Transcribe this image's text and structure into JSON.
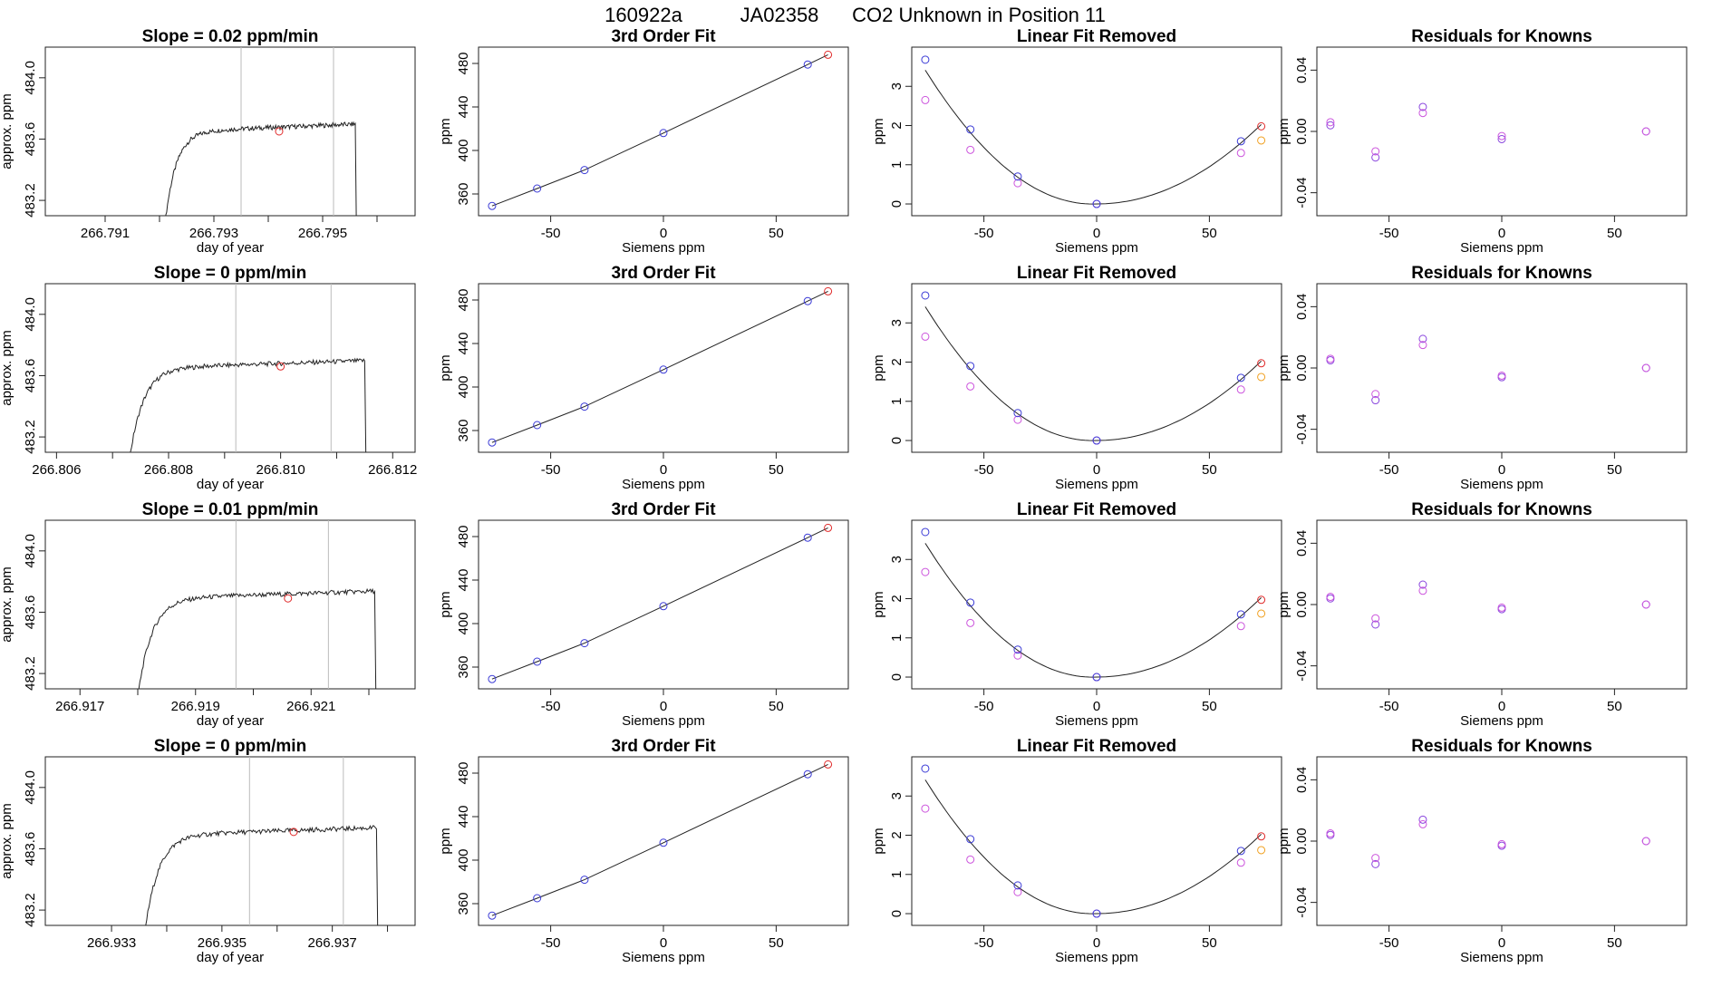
{
  "header": {
    "title_parts": [
      "160922a",
      "JA02358",
      "CO2 Unknown in Position  11"
    ]
  },
  "colors": {
    "known": "#3b3bd6",
    "unknown": "#e02a2a",
    "raw": "#cc55dd",
    "alt": "#f0a020",
    "residual": "#8844dd",
    "line": "#222222",
    "marker": "#bbbbbb"
  },
  "chart_data": [
    {
      "type": "line",
      "title": "Slope =  0.02  ppm/min",
      "xlabel": "day of year",
      "ylabel": "approx. ppm",
      "xlim": [
        266.7899,
        266.7967
      ],
      "ylim": [
        483.1,
        484.2
      ],
      "xticks": [
        266.791,
        266.793,
        266.795
      ],
      "xminor": [
        266.792,
        266.794,
        266.796
      ],
      "yticks": [
        483.2,
        483.6,
        484.0
      ],
      "start": 266.7921,
      "end": 266.7956,
      "plateau": 483.66,
      "markers": [
        266.7935,
        266.7952
      ],
      "point": {
        "x": 266.7942,
        "y": 483.65
      }
    },
    {
      "type": "line",
      "title": "3rd Order Fit",
      "xlabel": "Siemens ppm",
      "ylabel": "ppm",
      "xlim": [
        -82,
        82
      ],
      "ylim": [
        340,
        495
      ],
      "xticks": [
        -50,
        0,
        50
      ],
      "yticks": [
        360,
        400,
        440,
        480
      ],
      "points": [
        [
          -76,
          349
        ],
        [
          -56,
          365
        ],
        [
          -35,
          382
        ],
        [
          0,
          416
        ],
        [
          64,
          479
        ],
        [
          73,
          488
        ]
      ]
    },
    {
      "type": "scatter",
      "title": "Linear Fit Removed",
      "xlabel": "Siemens ppm",
      "ylabel": "ppm",
      "xlim": [
        -82,
        82
      ],
      "ylim": [
        -0.3,
        4.0
      ],
      "xticks": [
        -50,
        0,
        50
      ],
      "yticks": [
        0,
        1,
        2,
        3
      ],
      "fit": [
        [
          -76,
          3.68
        ],
        [
          -56,
          1.9
        ],
        [
          -35,
          0.7
        ],
        [
          0,
          0.0
        ],
        [
          64,
          1.6
        ],
        [
          73,
          1.98
        ]
      ],
      "raw": [
        [
          -76,
          2.65
        ],
        [
          -56,
          1.38
        ],
        [
          -35,
          0.53
        ],
        [
          0,
          0.0
        ],
        [
          64,
          1.3
        ]
      ],
      "alt": [
        [
          73,
          1.62
        ]
      ]
    },
    {
      "type": "scatter",
      "title": "Residuals for Knowns",
      "xlabel": "Siemens ppm",
      "ylabel": "ppm",
      "xlim": [
        -82,
        82
      ],
      "ylim": [
        -0.055,
        0.055
      ],
      "xticks": [
        -50,
        0,
        50
      ],
      "yticks": [
        -0.04,
        0.0,
        0.04
      ],
      "a": [
        [
          -76,
          0.004
        ],
        [
          -56,
          -0.017
        ],
        [
          -35,
          0.016
        ],
        [
          0,
          -0.005
        ],
        [
          64,
          0.0
        ]
      ],
      "b": [
        [
          -76,
          0.006
        ],
        [
          -56,
          -0.013
        ],
        [
          -35,
          0.012
        ],
        [
          0,
          -0.003
        ],
        [
          64,
          0.0
        ]
      ]
    },
    {
      "type": "line",
      "title": "Slope =  0  ppm/min",
      "xlabel": "day of year",
      "ylabel": "approx. ppm",
      "xlim": [
        266.8058,
        266.8124
      ],
      "ylim": [
        483.1,
        484.2
      ],
      "xticks": [
        266.806,
        266.808,
        266.81,
        266.812
      ],
      "xminor": [
        266.807,
        266.809,
        266.811
      ],
      "yticks": [
        483.2,
        483.6,
        484.0
      ],
      "start": 266.8073,
      "end": 266.8115,
      "plateau": 483.66,
      "markers": [
        266.8092,
        266.8109
      ],
      "point": {
        "x": 266.81,
        "y": 483.66
      }
    },
    {
      "type": "line",
      "title": "3rd Order Fit",
      "xlabel": "Siemens ppm",
      "ylabel": "ppm",
      "xlim": [
        -82,
        82
      ],
      "ylim": [
        340,
        495
      ],
      "xticks": [
        -50,
        0,
        50
      ],
      "yticks": [
        360,
        400,
        440,
        480
      ],
      "points": [
        [
          -76,
          349
        ],
        [
          -56,
          365
        ],
        [
          -35,
          382
        ],
        [
          0,
          416
        ],
        [
          64,
          479
        ],
        [
          73,
          488
        ]
      ]
    },
    {
      "type": "scatter",
      "title": "Linear Fit Removed",
      "xlabel": "Siemens ppm",
      "ylabel": "ppm",
      "xlim": [
        -82,
        82
      ],
      "ylim": [
        -0.3,
        4.0
      ],
      "xticks": [
        -50,
        0,
        50
      ],
      "yticks": [
        0,
        1,
        2,
        3
      ],
      "fit": [
        [
          -76,
          3.7
        ],
        [
          -56,
          1.9
        ],
        [
          -35,
          0.7
        ],
        [
          0,
          0.0
        ],
        [
          64,
          1.6
        ],
        [
          73,
          1.97
        ]
      ],
      "raw": [
        [
          -76,
          2.65
        ],
        [
          -56,
          1.38
        ],
        [
          -35,
          0.53
        ],
        [
          0,
          0.0
        ],
        [
          64,
          1.3
        ]
      ],
      "alt": [
        [
          73,
          1.62
        ]
      ]
    },
    {
      "type": "scatter",
      "title": "Residuals for Knowns",
      "xlabel": "Siemens ppm",
      "ylabel": "ppm",
      "xlim": [
        -82,
        82
      ],
      "ylim": [
        -0.055,
        0.055
      ],
      "xticks": [
        -50,
        0,
        50
      ],
      "yticks": [
        -0.04,
        0.0,
        0.04
      ],
      "a": [
        [
          -76,
          0.005
        ],
        [
          -56,
          -0.021
        ],
        [
          -35,
          0.019
        ],
        [
          0,
          -0.006
        ],
        [
          64,
          0.0
        ]
      ],
      "b": [
        [
          -76,
          0.006
        ],
        [
          -56,
          -0.017
        ],
        [
          -35,
          0.015
        ],
        [
          0,
          -0.005
        ],
        [
          64,
          0.0
        ]
      ]
    },
    {
      "type": "line",
      "title": "Slope =  0.01  ppm/min",
      "xlabel": "day of year",
      "ylabel": "approx. ppm",
      "xlim": [
        266.9164,
        266.9228
      ],
      "ylim": [
        483.1,
        484.2
      ],
      "xticks": [
        266.917,
        266.919,
        266.921
      ],
      "xminor": [
        266.918,
        266.92,
        266.922
      ],
      "yticks": [
        483.2,
        483.6,
        484.0
      ],
      "start": 266.918,
      "end": 266.9221,
      "plateau": 483.7,
      "markers": [
        266.9197,
        266.9213
      ],
      "point": {
        "x": 266.9206,
        "y": 483.69
      }
    },
    {
      "type": "line",
      "title": "3rd Order Fit",
      "xlabel": "Siemens ppm",
      "ylabel": "ppm",
      "xlim": [
        -82,
        82
      ],
      "ylim": [
        340,
        495
      ],
      "xticks": [
        -50,
        0,
        50
      ],
      "yticks": [
        360,
        400,
        440,
        480
      ],
      "points": [
        [
          -76,
          349
        ],
        [
          -56,
          365
        ],
        [
          -35,
          382
        ],
        [
          0,
          416
        ],
        [
          64,
          479
        ],
        [
          73,
          488
        ]
      ]
    },
    {
      "type": "scatter",
      "title": "Linear Fit Removed",
      "xlabel": "Siemens ppm",
      "ylabel": "ppm",
      "xlim": [
        -82,
        82
      ],
      "ylim": [
        -0.3,
        4.0
      ],
      "xticks": [
        -50,
        0,
        50
      ],
      "yticks": [
        0,
        1,
        2,
        3
      ],
      "fit": [
        [
          -76,
          3.7
        ],
        [
          -56,
          1.9
        ],
        [
          -35,
          0.7
        ],
        [
          0,
          0.0
        ],
        [
          64,
          1.6
        ],
        [
          73,
          1.97
        ]
      ],
      "raw": [
        [
          -76,
          2.68
        ],
        [
          -56,
          1.38
        ],
        [
          -35,
          0.55
        ],
        [
          0,
          0.0
        ],
        [
          64,
          1.3
        ]
      ],
      "alt": [
        [
          73,
          1.62
        ]
      ]
    },
    {
      "type": "scatter",
      "title": "Residuals for Knowns",
      "xlabel": "Siemens ppm",
      "ylabel": "ppm",
      "xlim": [
        -82,
        82
      ],
      "ylim": [
        -0.055,
        0.055
      ],
      "xticks": [
        -50,
        0,
        50
      ],
      "yticks": [
        -0.04,
        0.0,
        0.04
      ],
      "a": [
        [
          -76,
          0.004
        ],
        [
          -56,
          -0.013
        ],
        [
          -35,
          0.013
        ],
        [
          0,
          -0.003
        ],
        [
          64,
          0.0
        ]
      ],
      "b": [
        [
          -76,
          0.005
        ],
        [
          -56,
          -0.009
        ],
        [
          -35,
          0.009
        ],
        [
          0,
          -0.002
        ],
        [
          64,
          0.0
        ]
      ]
    },
    {
      "type": "line",
      "title": "Slope =  0  ppm/min",
      "xlabel": "day of year",
      "ylabel": "approx. ppm",
      "xlim": [
        266.9318,
        266.9385
      ],
      "ylim": [
        483.1,
        484.2
      ],
      "xticks": [
        266.933,
        266.935,
        266.937
      ],
      "xminor": [
        266.934,
        266.936,
        266.938
      ],
      "yticks": [
        483.2,
        483.6,
        484.0
      ],
      "start": 266.9336,
      "end": 266.9378,
      "plateau": 483.7,
      "markers": [
        266.9355,
        266.9372
      ],
      "point": {
        "x": 266.9363,
        "y": 483.71
      }
    },
    {
      "type": "line",
      "title": "3rd Order Fit",
      "xlabel": "Siemens ppm",
      "ylabel": "ppm",
      "xlim": [
        -82,
        82
      ],
      "ylim": [
        340,
        495
      ],
      "xticks": [
        -50,
        0,
        50
      ],
      "yticks": [
        360,
        400,
        440,
        480
      ],
      "points": [
        [
          -76,
          349
        ],
        [
          -56,
          365
        ],
        [
          -35,
          382
        ],
        [
          0,
          416
        ],
        [
          64,
          479
        ],
        [
          73,
          488
        ]
      ]
    },
    {
      "type": "scatter",
      "title": "Linear Fit Removed",
      "xlabel": "Siemens ppm",
      "ylabel": "ppm",
      "xlim": [
        -82,
        82
      ],
      "ylim": [
        -0.3,
        4.0
      ],
      "xticks": [
        -50,
        0,
        50
      ],
      "yticks": [
        0,
        1,
        2,
        3
      ],
      "fit": [
        [
          -76,
          3.7
        ],
        [
          -56,
          1.9
        ],
        [
          -35,
          0.72
        ],
        [
          0,
          0.0
        ],
        [
          64,
          1.6
        ],
        [
          73,
          1.97
        ]
      ],
      "raw": [
        [
          -76,
          2.68
        ],
        [
          -56,
          1.38
        ],
        [
          -35,
          0.55
        ],
        [
          0,
          0.0
        ],
        [
          64,
          1.3
        ]
      ],
      "alt": [
        [
          73,
          1.62
        ]
      ]
    },
    {
      "type": "scatter",
      "title": "Residuals for Knowns",
      "xlabel": "Siemens ppm",
      "ylabel": "ppm",
      "xlim": [
        -82,
        82
      ],
      "ylim": [
        -0.055,
        0.055
      ],
      "xticks": [
        -50,
        0,
        50
      ],
      "yticks": [
        -0.04,
        0.0,
        0.04
      ],
      "a": [
        [
          -76,
          0.004
        ],
        [
          -56,
          -0.015
        ],
        [
          -35,
          0.014
        ],
        [
          0,
          -0.003
        ],
        [
          64,
          0.0
        ]
      ],
      "b": [
        [
          -76,
          0.005
        ],
        [
          -56,
          -0.011
        ],
        [
          -35,
          0.011
        ],
        [
          0,
          -0.002
        ],
        [
          64,
          0.0
        ]
      ]
    }
  ]
}
